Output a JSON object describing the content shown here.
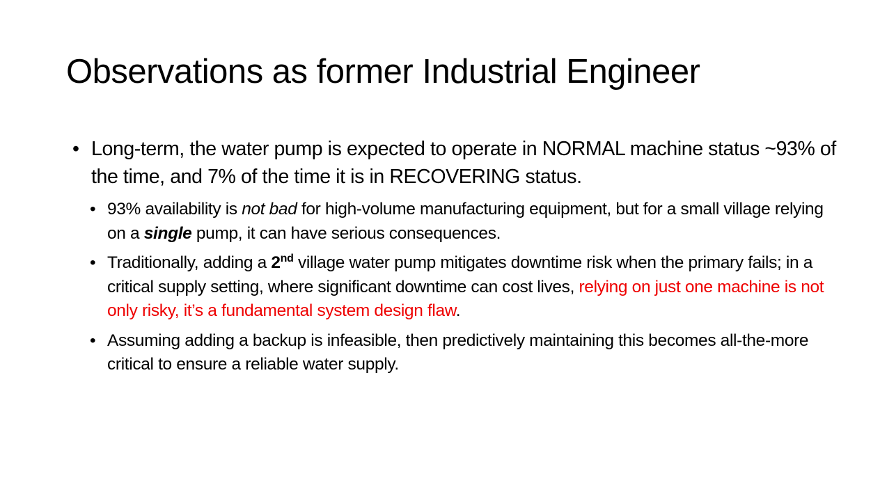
{
  "slide": {
    "title": "Observations as former Industrial Engineer",
    "bullet_glyph": "•",
    "point1": {
      "text": "Long-term, the water pump is expected to operate in NORMAL machine status ~93% of the time, and 7% of the time it is in RECOVERING status."
    },
    "sub1": {
      "t1": "93% availability is ",
      "em": "not bad",
      "t2": " for high-volume manufacturing equipment, but for a small village relying on a ",
      "strong_em": "single",
      "t3": " pump, it can have serious consequences."
    },
    "sub2": {
      "t1": "Traditionally, adding a ",
      "ordinal_num": "2",
      "ordinal_suffix": "nd",
      "t2": " village water pump mitigates downtime risk when the primary fails; in a critical supply setting, where significant downtime can cost lives, ",
      "red_text": "relying on just one machine is not only risky, it’s a fundamental system design flaw",
      "t3": "."
    },
    "sub3": {
      "text": "Assuming adding a backup is infeasible, then predictively maintaining this becomes all-the-more critical to ensure a reliable water supply."
    },
    "colors": {
      "text": "#000000",
      "highlight": "#ee0000",
      "background": "#ffffff"
    }
  }
}
